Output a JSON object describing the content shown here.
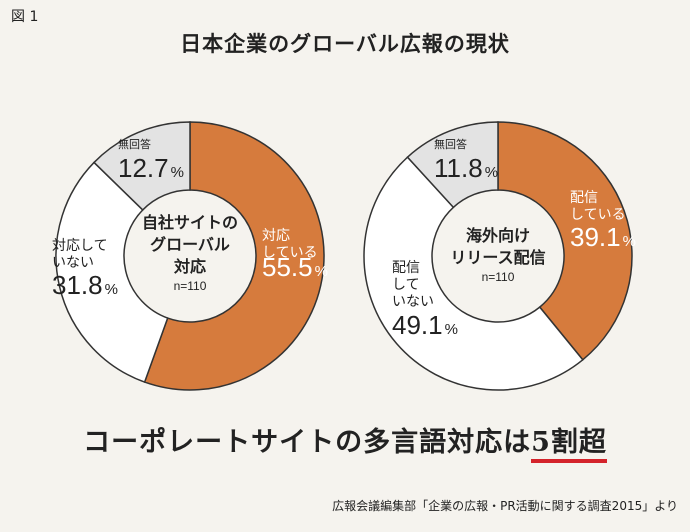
{
  "figure_label": "図 1",
  "title": "日本企業のグローバル広報の現状",
  "headline_text": "コーポレートサイトの多言語対応は",
  "headline_highlight": "5割超",
  "source": "広報会議編集部「企業の広報・PR活動に関する調査2015」より",
  "colors": {
    "orange": "#d67b3d",
    "white": "#ffffff",
    "gray": "#e3e3e3",
    "stroke": "#333333",
    "accent_red": "#d4232b"
  },
  "chart_data": [
    {
      "type": "pie",
      "center_label": [
        "自社サイトの",
        "グローバル",
        "対応"
      ],
      "n_label": "n=110",
      "slices": [
        {
          "label": [
            "対応",
            "している"
          ],
          "value": 55.5,
          "color": "#d67b3d",
          "text_color": "#ffffff"
        },
        {
          "label": [
            "対応して",
            "いない"
          ],
          "value": 31.8,
          "color": "#ffffff",
          "text_color": "#222222"
        },
        {
          "label": [
            "無回答"
          ],
          "value": 12.7,
          "color": "#e3e3e3",
          "text_color": "#222222"
        }
      ],
      "percent_suffix": "%"
    },
    {
      "type": "pie",
      "center_label": [
        "海外向け",
        "リリース配信"
      ],
      "n_label": "n=110",
      "slices": [
        {
          "label": [
            "配信",
            "している"
          ],
          "value": 39.1,
          "color": "#d67b3d",
          "text_color": "#ffffff"
        },
        {
          "label": [
            "配信",
            "して",
            "いない"
          ],
          "value": 49.1,
          "color": "#ffffff",
          "text_color": "#222222"
        },
        {
          "label": [
            "無回答"
          ],
          "value": 11.8,
          "color": "#e3e3e3",
          "text_color": "#222222"
        }
      ],
      "percent_suffix": "%"
    }
  ]
}
